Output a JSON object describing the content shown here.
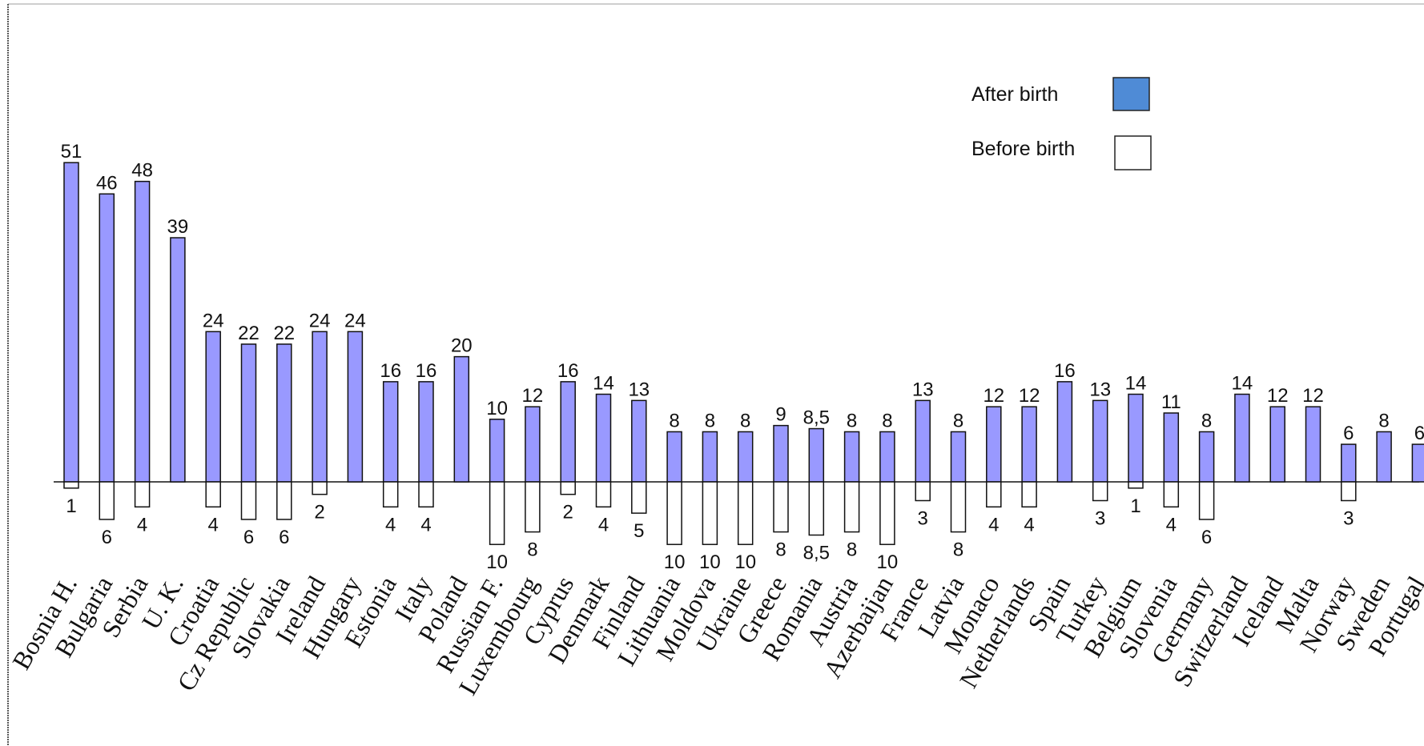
{
  "chart_data": {
    "type": "bar",
    "categories": [
      "Bosnia H.",
      "Bulgaria",
      "Serbia",
      "U. K.",
      "Croatia",
      "Cz Republic",
      "Slovakia",
      "Ireland",
      "Hungary",
      "Estonia",
      "Italy",
      "Poland",
      "Russian F.",
      "Luxembourg",
      "Cyprus",
      "Denmark",
      "Finland",
      "Lithuania",
      "Moldova",
      "Ukraine",
      "Greece",
      "Romania",
      "Austria",
      "Azerbaijan",
      "France",
      "Latvia",
      "Monaco",
      "Netherlands",
      "Spain",
      "Turkey",
      "Belgium",
      "Slovenia",
      "Germany",
      "Switzerland",
      "Iceland",
      "Malta",
      "Norway",
      "Sweden",
      "Portugal"
    ],
    "series": [
      {
        "name": "After birth",
        "color": "#9999ff",
        "values": [
          51,
          46,
          48,
          39,
          24,
          22,
          22,
          24,
          24,
          16,
          16,
          20,
          10,
          12,
          16,
          14,
          13,
          8,
          8,
          8,
          9,
          8.5,
          8,
          8,
          13,
          8,
          12,
          12,
          16,
          13,
          14,
          11,
          8,
          14,
          12,
          12,
          6,
          8,
          6
        ],
        "labels": [
          "51",
          "46",
          "48",
          "39",
          "24",
          "22",
          "22",
          "24",
          "24",
          "16",
          "16",
          "20",
          "10",
          "12",
          "16",
          "14",
          "13",
          "8",
          "8",
          "8",
          "9",
          "8,5",
          "8",
          "8",
          "13",
          "8",
          "12",
          "12",
          "16",
          "13",
          "14",
          "11",
          "8",
          "14",
          "12",
          "12",
          "6",
          "8",
          "6"
        ]
      },
      {
        "name": "Before birth",
        "color": "#ffffff",
        "values": [
          1,
          6,
          4,
          0,
          4,
          6,
          6,
          2,
          0,
          4,
          4,
          0,
          10,
          8,
          2,
          4,
          5,
          10,
          10,
          10,
          8,
          8.5,
          8,
          10,
          3,
          8,
          4,
          4,
          0,
          3,
          1,
          4,
          6,
          0,
          0,
          0,
          3,
          0,
          0
        ],
        "labels": [
          "1",
          "6",
          "4",
          "",
          "4",
          "6",
          "6",
          "2",
          "",
          "4",
          "4",
          "",
          "10",
          "8",
          "2",
          "4",
          "5",
          "10",
          "10",
          "10",
          "8",
          "8,5",
          "8",
          "10",
          "3",
          "8",
          "4",
          "4",
          "",
          "3",
          "1",
          "4",
          "6",
          "",
          "",
          "",
          "3",
          "",
          ""
        ]
      }
    ],
    "legend": {
      "position": "top-right",
      "items": [
        {
          "label": "After birth",
          "color": "#4f8bd6"
        },
        {
          "label": "Before birth",
          "color": "#ffffff"
        }
      ]
    },
    "grid": false
  }
}
